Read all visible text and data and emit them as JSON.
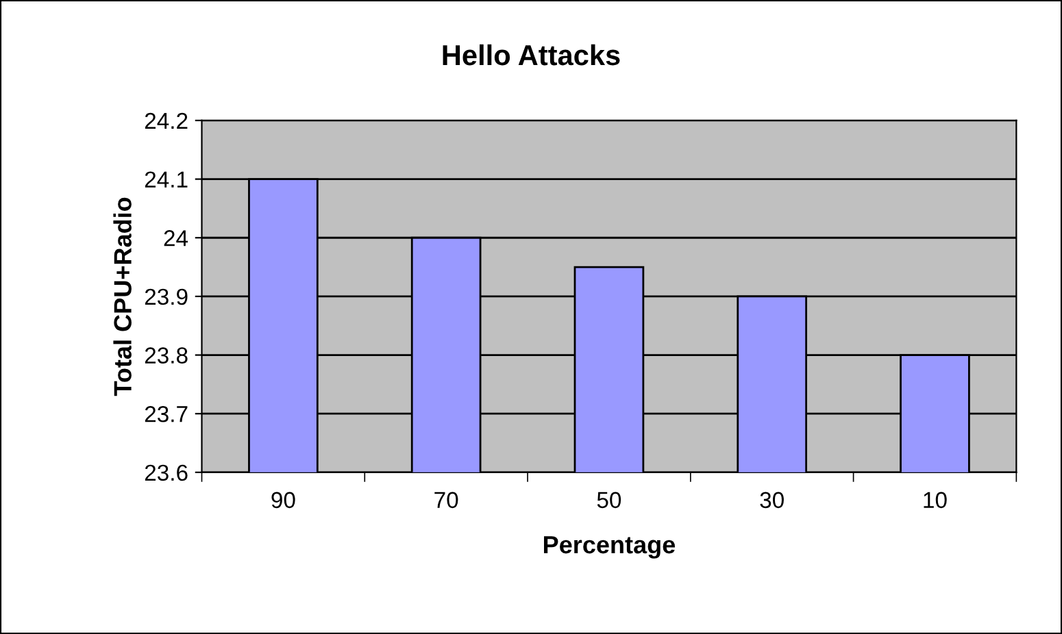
{
  "chart_data": {
    "type": "bar",
    "title": "Hello Attacks",
    "xlabel": "Percentage",
    "ylabel": "Total CPU+Radio",
    "categories": [
      "90",
      "70",
      "50",
      "30",
      "10"
    ],
    "values": [
      24.1,
      24.0,
      23.95,
      23.9,
      23.8
    ],
    "color": "#9999ff",
    "ylim": [
      23.6,
      24.2
    ],
    "yticks": [
      23.6,
      23.7,
      23.8,
      23.9,
      {
        "value": 24.0,
        "label": "24"
      },
      24.1,
      24.2
    ],
    "grid": "y",
    "legend": false
  }
}
